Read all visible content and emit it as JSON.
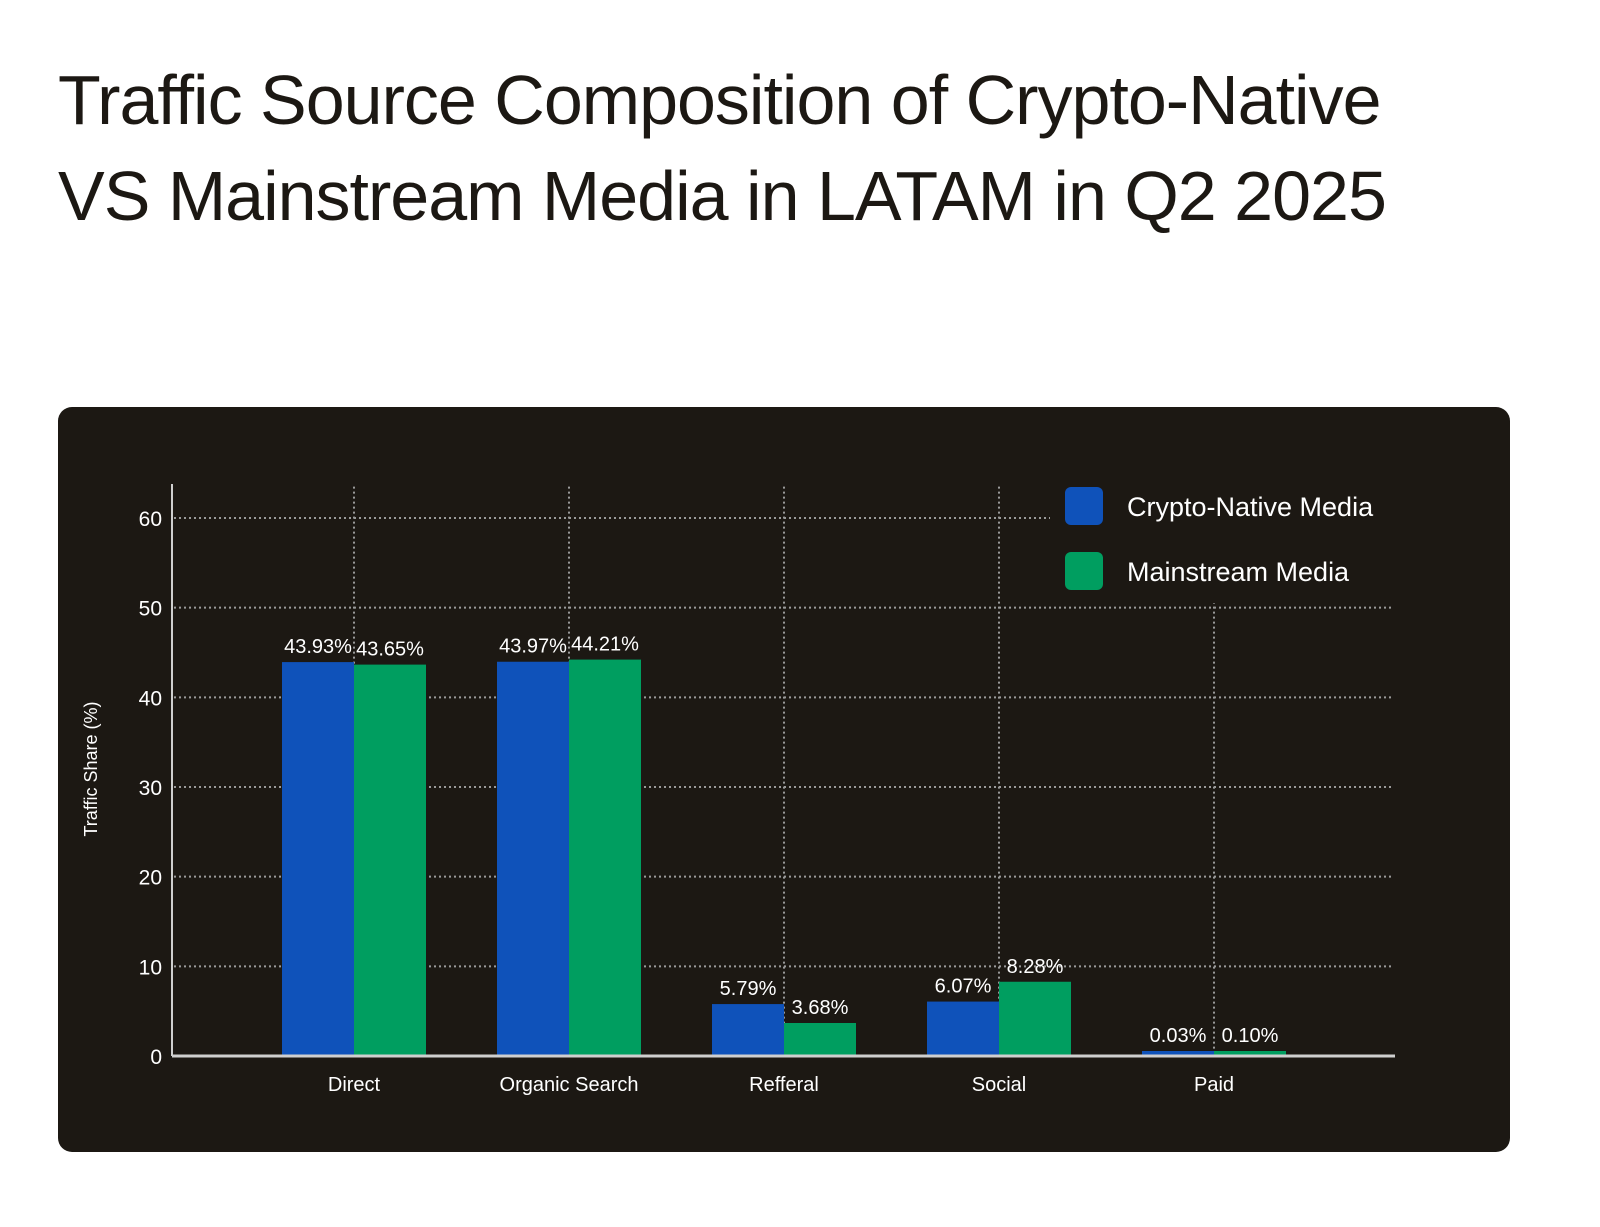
{
  "title": "Traffic Source Composition of Crypto-Native VS Mainstream Media in LATAM in Q2 2025",
  "chart_data": {
    "type": "bar",
    "title": "Traffic Source Composition of Crypto-Native VS Mainstream Media in LATAM in Q2 2025",
    "xlabel": "",
    "ylabel": "Traffic Share (%)",
    "ylim": [
      0,
      64
    ],
    "yticks": [
      0,
      10,
      20,
      30,
      40,
      50,
      60
    ],
    "grid": true,
    "legend_position": "top-right",
    "categories": [
      "Direct",
      "Organic Search",
      "Refferal",
      "Social",
      "Paid"
    ],
    "series": [
      {
        "name": "Crypto-Native Media",
        "color": "#0f52ba",
        "values": [
          43.93,
          43.97,
          5.79,
          6.07,
          0.03
        ],
        "labels": [
          "43.93%",
          "43.97%",
          "5.79%",
          "6.07%",
          "0.03%"
        ]
      },
      {
        "name": "Mainstream Media",
        "color": "#009e60",
        "values": [
          43.65,
          44.21,
          3.68,
          8.28,
          0.1
        ],
        "labels": [
          "43.65%",
          "44.21%",
          "3.68%",
          "8.28%",
          "0.10%"
        ]
      }
    ],
    "background_color": "#1c1813"
  }
}
